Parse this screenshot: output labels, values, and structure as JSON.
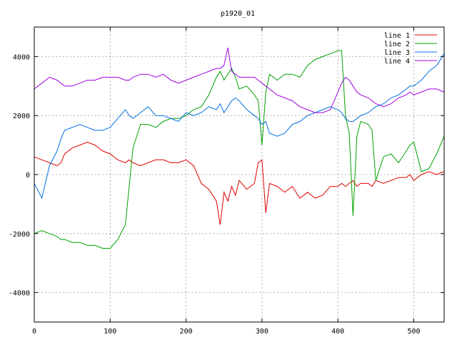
{
  "chart_data": {
    "type": "line",
    "title": "p1920_01",
    "xlabel": "",
    "ylabel": "",
    "xlim": [
      0,
      540
    ],
    "ylim": [
      -5000,
      5000
    ],
    "x_ticks": [
      0,
      100,
      200,
      300,
      400,
      500
    ],
    "y_ticks": [
      -4000,
      -2000,
      0,
      2000,
      4000
    ],
    "x_tick_labels": [
      "0",
      "100",
      "200",
      "300",
      "400",
      "500"
    ],
    "y_tick_labels": [
      "-4000",
      "-2000",
      "0",
      "2000",
      "4000"
    ],
    "grid": true,
    "legend_position": "top-right",
    "x": [
      0,
      10,
      20,
      30,
      35,
      40,
      50,
      60,
      70,
      80,
      90,
      100,
      110,
      120,
      125,
      130,
      140,
      150,
      160,
      170,
      180,
      190,
      200,
      210,
      220,
      230,
      240,
      245,
      250,
      255,
      260,
      265,
      270,
      280,
      290,
      295,
      300,
      305,
      310,
      320,
      330,
      340,
      350,
      360,
      370,
      380,
      390,
      400,
      405,
      410,
      415,
      420,
      425,
      430,
      440,
      445,
      450,
      460,
      470,
      480,
      490,
      495,
      500,
      510,
      520,
      530,
      540
    ],
    "series": [
      {
        "name": "line 1",
        "color": "#e00000",
        "values": [
          600,
          500,
          400,
          300,
          400,
          700,
          900,
          1000,
          1100,
          1000,
          800,
          700,
          500,
          400,
          500,
          400,
          300,
          400,
          500,
          500,
          400,
          400,
          500,
          300,
          -300,
          -500,
          -900,
          -1700,
          -600,
          -900,
          -400,
          -700,
          -200,
          -500,
          -300,
          400,
          500,
          -1300,
          -300,
          -400,
          -600,
          -400,
          -800,
          -600,
          -800,
          -700,
          -400,
          -400,
          -300,
          -400,
          -300,
          -200,
          -400,
          -300,
          -300,
          -400,
          -200,
          -300,
          -200,
          -100,
          -100,
          0,
          -200,
          0,
          100,
          0,
          100
        ]
      },
      {
        "name": "line 2",
        "color": "#00a000",
        "values": [
          -2000,
          -1900,
          -2000,
          -2100,
          -2200,
          -2200,
          -2300,
          -2300,
          -2400,
          -2400,
          -2500,
          -2500,
          -2200,
          -1700,
          -400,
          900,
          1700,
          1700,
          1600,
          1800,
          1900,
          1900,
          2000,
          2200,
          2300,
          2700,
          3300,
          3500,
          3200,
          3400,
          3600,
          3300,
          2900,
          3000,
          2700,
          2500,
          1000,
          2800,
          3400,
          3200,
          3400,
          3400,
          3300,
          3700,
          3900,
          4000,
          4100,
          4200,
          4200,
          2000,
          1400,
          -1400,
          1300,
          1800,
          1700,
          1500,
          -200,
          600,
          700,
          400,
          800,
          1000,
          1100,
          100,
          200,
          700,
          1300
        ]
      },
      {
        "name": "line 3",
        "color": "#0070e0",
        "values": [
          -300,
          -800,
          300,
          800,
          1200,
          1500,
          1600,
          1700,
          1600,
          1500,
          1500,
          1600,
          1900,
          2200,
          2000,
          1900,
          2100,
          2300,
          2000,
          2000,
          1900,
          1800,
          2100,
          2000,
          2100,
          2300,
          2200,
          2400,
          2100,
          2300,
          2500,
          2600,
          2500,
          2200,
          2000,
          1900,
          1700,
          1800,
          1400,
          1300,
          1400,
          1700,
          1800,
          2000,
          2100,
          2200,
          2300,
          2200,
          2100,
          1900,
          1800,
          1800,
          1900,
          2000,
          2100,
          2200,
          2300,
          2400,
          2600,
          2700,
          2900,
          3000,
          3000,
          3200,
          3500,
          3700,
          4100
        ]
      },
      {
        "name": "line 4",
        "color": "#a000e0",
        "values": [
          2900,
          3100,
          3300,
          3200,
          3100,
          3000,
          3000,
          3100,
          3200,
          3200,
          3300,
          3300,
          3300,
          3200,
          3200,
          3300,
          3400,
          3400,
          3300,
          3400,
          3200,
          3100,
          3200,
          3300,
          3400,
          3500,
          3600,
          3600,
          3700,
          4300,
          3500,
          3400,
          3300,
          3300,
          3300,
          3200,
          3100,
          3000,
          2900,
          2700,
          2600,
          2500,
          2300,
          2200,
          2100,
          2100,
          2200,
          2800,
          3100,
          3300,
          3200,
          3000,
          2800,
          2700,
          2600,
          2500,
          2400,
          2300,
          2400,
          2600,
          2700,
          2800,
          2700,
          2800,
          2900,
          2900,
          2800
        ]
      }
    ]
  }
}
